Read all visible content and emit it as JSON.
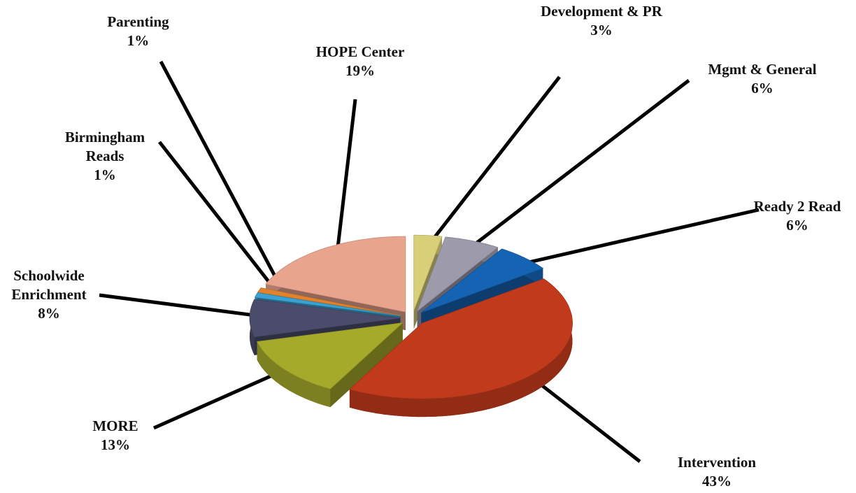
{
  "chart_data": {
    "type": "pie",
    "categories": [
      "Development & PR",
      "Mgmt & General",
      "Ready 2 Read",
      "Intervention",
      "MORE",
      "Schoolwide Enrichment",
      "Birmingham Reads",
      "Parenting",
      "HOPE Center"
    ],
    "values": [
      3,
      6,
      6,
      43,
      13,
      8,
      1,
      1,
      19
    ],
    "value_labels": [
      "3%",
      "6%",
      "6%",
      "43%",
      "13%",
      "8%",
      "1%",
      "1%",
      "19%"
    ],
    "colors": [
      "#d8cf78",
      "#9c9aab",
      "#1563b3",
      "#c23a1c",
      "#a6aa2a",
      "#4b4c6c",
      "#3aa2d2",
      "#e2822c",
      "#e9a48e"
    ]
  }
}
